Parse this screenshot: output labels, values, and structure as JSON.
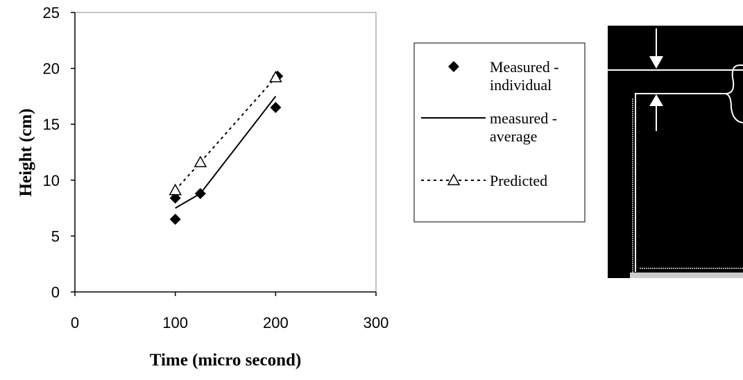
{
  "chart_data": {
    "type": "line",
    "title": "",
    "xlabel": "Time (micro second)",
    "ylabel": "Height (cm)",
    "xlim": [
      0,
      300
    ],
    "ylim": [
      0,
      25
    ],
    "x_ticks": [
      "0",
      "100",
      "200",
      "300"
    ],
    "y_ticks": [
      "0",
      "5",
      "10",
      "15",
      "20",
      "25"
    ],
    "grid": false,
    "legend_position": "right",
    "series": [
      {
        "name": "Measured - individual",
        "name_lines": [
          "Measured -",
          "individual"
        ],
        "style": "markers",
        "marker": "diamond",
        "color": "#000000",
        "points": [
          [
            100,
            8.4
          ],
          [
            100,
            6.5
          ],
          [
            125,
            8.8
          ],
          [
            200,
            16.5
          ],
          [
            202,
            19.3
          ]
        ]
      },
      {
        "name": "measured - average",
        "name_lines": [
          "measured -",
          "average"
        ],
        "style": "solid",
        "marker": "none",
        "color": "#000000",
        "points": [
          [
            100,
            7.5
          ],
          [
            125,
            8.8
          ],
          [
            200,
            17.5
          ]
        ]
      },
      {
        "name": "Predicted",
        "name_lines": [
          "Predicted"
        ],
        "style": "dashed",
        "marker": "triangle-open",
        "color": "#000000",
        "points": [
          [
            100,
            9.1
          ],
          [
            125,
            11.6
          ],
          [
            200,
            19.2
          ]
        ]
      }
    ]
  },
  "photo": {
    "description_icon": "arrow-down-icon, arrow-up-icon",
    "background": "#000000",
    "line_color": "#ffffff"
  }
}
